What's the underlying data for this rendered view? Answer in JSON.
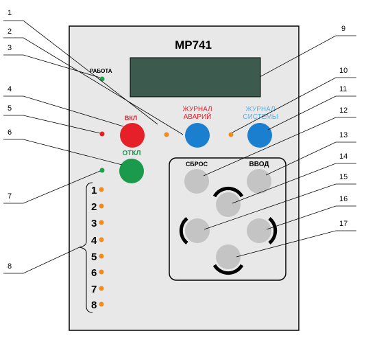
{
  "device": {
    "model": "МР741",
    "work_label": "РАБОТА",
    "on_label": "ВКЛ",
    "off_label": "ОТКЛ",
    "alarm_journal_line1": "ЖУРНАЛ",
    "alarm_journal_line2": "АВАРИЙ",
    "system_journal_line1": "ЖУРНАЛ",
    "system_journal_line2": "СИСТЕМЫ",
    "reset_label": "СБРОС",
    "enter_label": "ВВОД",
    "indicator_numbers": [
      "1",
      "2",
      "3",
      "4",
      "5",
      "6",
      "7",
      "8"
    ]
  },
  "callouts": [
    "1",
    "2",
    "3",
    "4",
    "5",
    "6",
    "7",
    "8",
    "9",
    "10",
    "11",
    "12",
    "13",
    "14",
    "15",
    "16",
    "17"
  ],
  "colors": {
    "panel": "#e8e8e8",
    "display": "#3d5a4f",
    "led_green": "#1aa34a",
    "led_red": "#e02020",
    "led_orange": "#f28b1e",
    "btn_red": "#e52028",
    "btn_blue": "#1b7fd0",
    "btn_green": "#1a9a4a",
    "btn_grey": "#c4c4c4",
    "label_red": "#e52028",
    "label_blue": "#5bb0e8",
    "label_green": "#1a9a4a"
  }
}
